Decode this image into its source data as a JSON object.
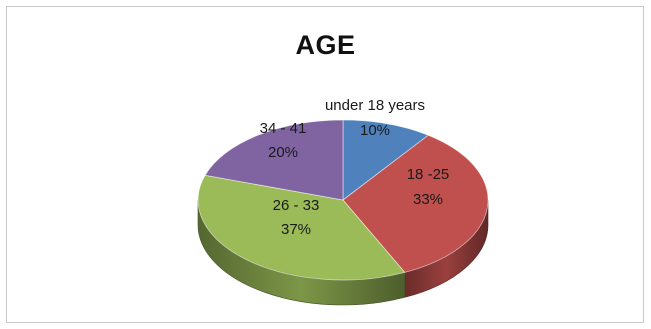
{
  "chart_data": {
    "type": "pie",
    "title": "AGE",
    "three_d": true,
    "slices": [
      {
        "label": "under 18 years",
        "value": 10,
        "value_label": "10%",
        "color": "#4f81bd"
      },
      {
        "label": "18 -25",
        "value": 33,
        "value_label": "33%",
        "color": "#c0504d"
      },
      {
        "label": "26 - 33",
        "value": 37,
        "value_label": "37%",
        "color": "#9bbb59"
      },
      {
        "label": "34 - 41",
        "value": 20,
        "value_label": "20%",
        "color": "#8064a2"
      }
    ]
  }
}
